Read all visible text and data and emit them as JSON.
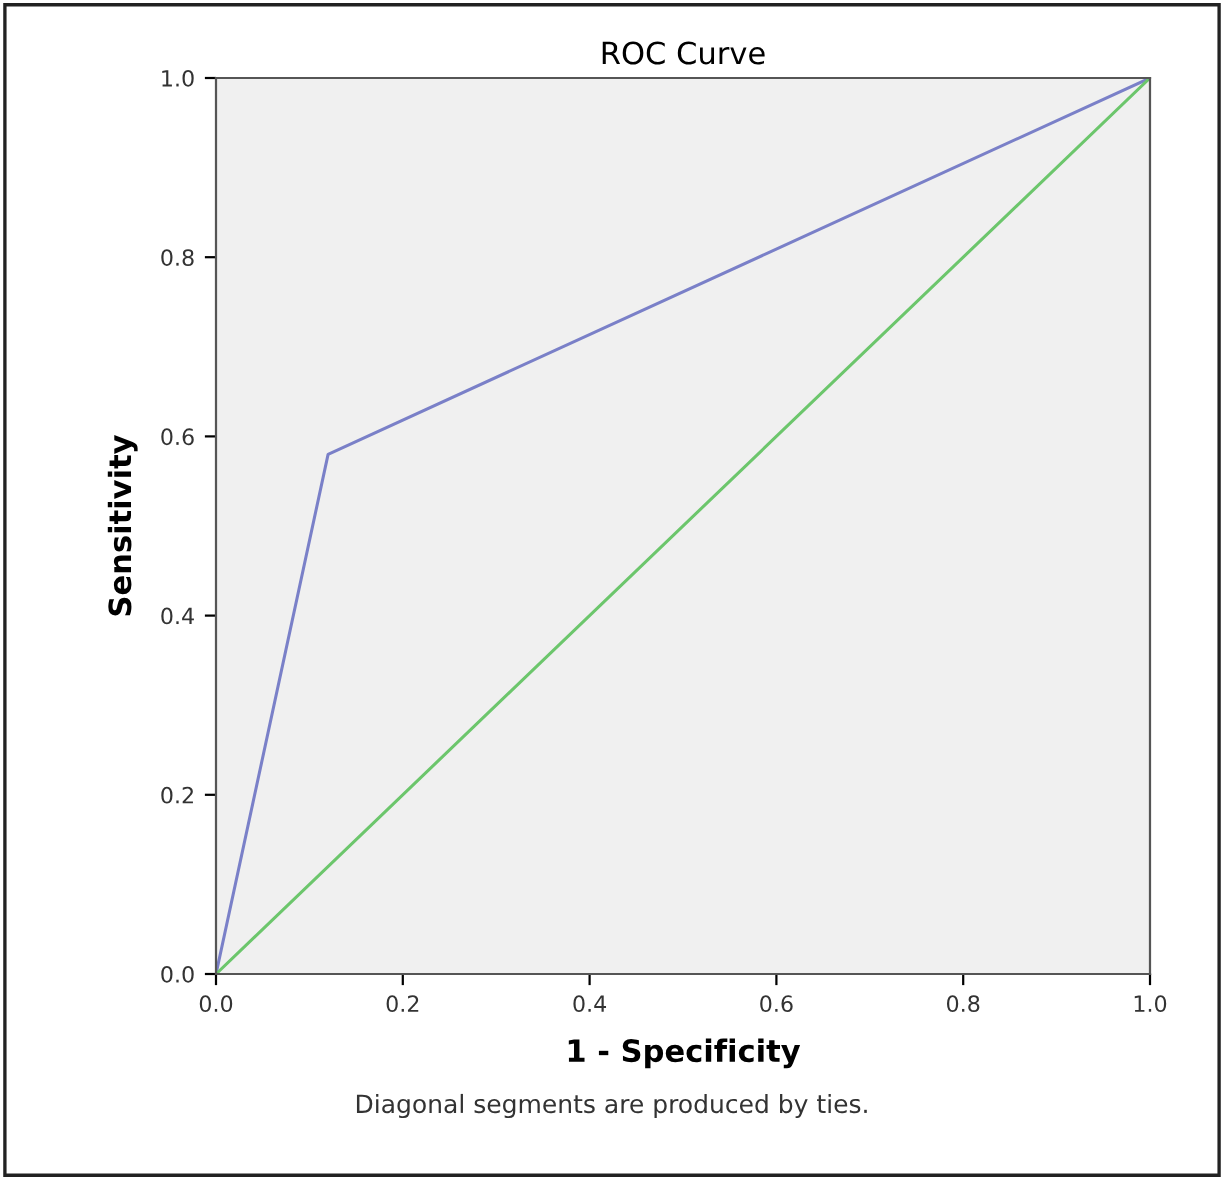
{
  "chart_data": {
    "type": "line",
    "title": "ROC Curve",
    "xlabel": "1 - Specificity",
    "ylabel": "Sensitivity",
    "annotations": [
      "Diagonal segments are produced by ties."
    ],
    "series": [
      {
        "color": "#7a80c8",
        "x": [
          0.0,
          0.12,
          1.0
        ],
        "values": [
          0.0,
          0.58,
          1.0
        ]
      },
      {
        "color": "#6cc66c",
        "x": [
          0.0,
          1.0
        ],
        "values": [
          0.0,
          1.0
        ]
      }
    ],
    "xlim": [
      0.0,
      1.0
    ],
    "ylim": [
      0.0,
      1.0
    ],
    "xticks": [
      {
        "value": 0,
        "label": "0.0"
      },
      0.2,
      0.4,
      0.6,
      0.8,
      {
        "value": 1,
        "label": "1.0"
      }
    ],
    "yticks": [
      {
        "value": 0,
        "label": "0.0"
      },
      0.2,
      0.4,
      0.6,
      0.8,
      {
        "value": 1,
        "label": "1.0"
      }
    ],
    "grid": false
  }
}
